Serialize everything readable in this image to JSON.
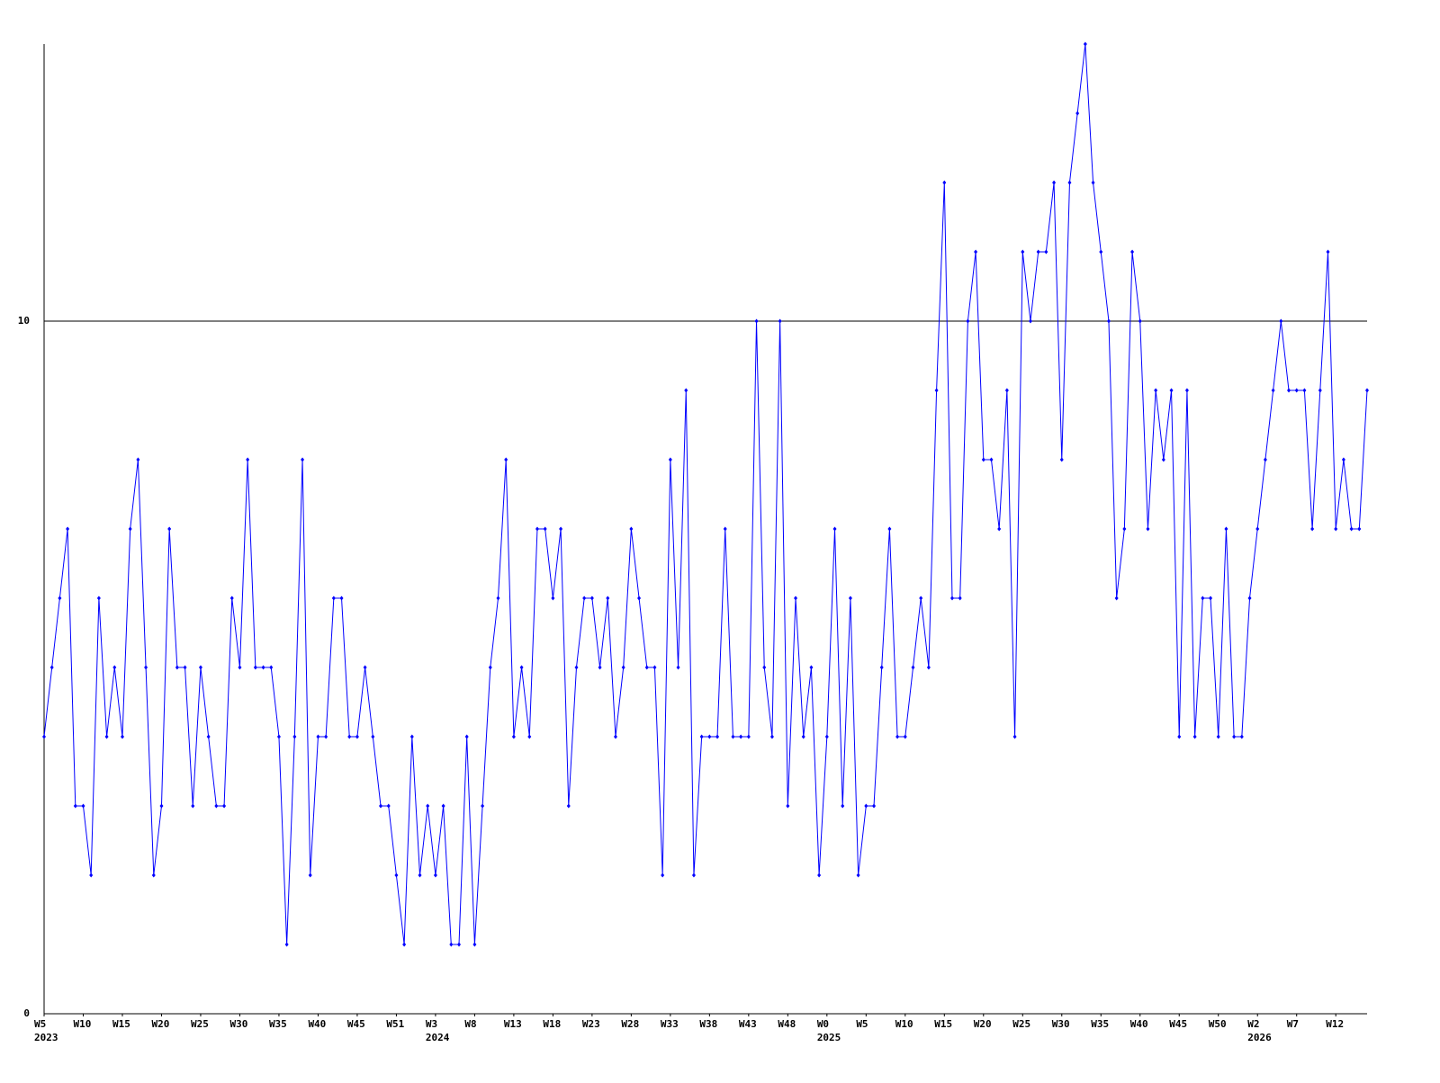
{
  "chart_data": {
    "type": "line",
    "categories": [
      [
        "W5",
        "2023"
      ],
      null,
      null,
      null,
      null,
      "W10",
      null,
      null,
      null,
      null,
      "W15",
      null,
      null,
      null,
      null,
      "W20",
      null,
      null,
      null,
      null,
      "W25",
      null,
      null,
      null,
      null,
      "W30",
      null,
      null,
      null,
      null,
      "W35",
      null,
      null,
      null,
      null,
      "W40",
      null,
      null,
      null,
      null,
      "W45",
      null,
      null,
      null,
      null,
      "W51",
      null,
      null,
      null,
      null,
      [
        "W3",
        "2024"
      ],
      null,
      null,
      null,
      null,
      "W8",
      null,
      null,
      null,
      null,
      "W13",
      null,
      null,
      null,
      null,
      "W18",
      null,
      null,
      null,
      null,
      "W23",
      null,
      null,
      null,
      null,
      "W28",
      null,
      null,
      null,
      null,
      "W33",
      null,
      null,
      null,
      null,
      "W38",
      null,
      null,
      null,
      null,
      "W43",
      null,
      null,
      null,
      null,
      "W48",
      null,
      null,
      null,
      null,
      [
        "W0",
        "2025"
      ],
      null,
      null,
      null,
      null,
      "W5",
      null,
      null,
      null,
      null,
      "W10",
      null,
      null,
      null,
      null,
      "W15",
      null,
      null,
      null,
      null,
      "W20",
      null,
      null,
      null,
      null,
      "W25",
      null,
      null,
      null,
      null,
      "W30",
      null,
      null,
      null,
      null,
      "W35",
      null,
      null,
      null,
      null,
      "W40",
      null,
      null,
      null,
      null,
      "W45",
      null,
      null,
      null,
      null,
      "W50",
      null,
      null,
      null,
      null,
      [
        "W2",
        "2026"
      ],
      null,
      null,
      null,
      null,
      "W7",
      null,
      null,
      null,
      null,
      "W12",
      null,
      null,
      null,
      null
    ],
    "series": [
      {
        "color": "#0000ff",
        "values": [
          4,
          5,
          6,
          7,
          3,
          3,
          2,
          6,
          4,
          5,
          4,
          7,
          8,
          5,
          2,
          3,
          7,
          5,
          5,
          3,
          5,
          4,
          3,
          3,
          6,
          5,
          8,
          5,
          5,
          5,
          4,
          1,
          4,
          8,
          2,
          4,
          4,
          6,
          6,
          4,
          4,
          5,
          4,
          3,
          3,
          2,
          1,
          4,
          2,
          3,
          2,
          3,
          1,
          1,
          4,
          1,
          3,
          5,
          6,
          8,
          4,
          5,
          4,
          7,
          7,
          6,
          7,
          3,
          5,
          6,
          6,
          5,
          6,
          4,
          5,
          7,
          6,
          5,
          5,
          2,
          8,
          5,
          9,
          2,
          4,
          4,
          4,
          7,
          4,
          4,
          4,
          10,
          5,
          4,
          10,
          3,
          6,
          4,
          5,
          2,
          4,
          7,
          3,
          6,
          2,
          3,
          3,
          5,
          7,
          4,
          4,
          5,
          6,
          5,
          9,
          12,
          6,
          6,
          10,
          11,
          8,
          8,
          7,
          9,
          4,
          11,
          10,
          11,
          11,
          12,
          8,
          12,
          13,
          14,
          12,
          11,
          10,
          6,
          7,
          11,
          10,
          7,
          9,
          8,
          9,
          4,
          9,
          4,
          6,
          6,
          4,
          7,
          4,
          4,
          6,
          7,
          8,
          9,
          10,
          9,
          9,
          9,
          7,
          9,
          11,
          7,
          8,
          7,
          7,
          9
        ]
      }
    ],
    "ylim": [
      0,
      14
    ],
    "yticks": [
      0,
      10
    ],
    "grid": true
  }
}
